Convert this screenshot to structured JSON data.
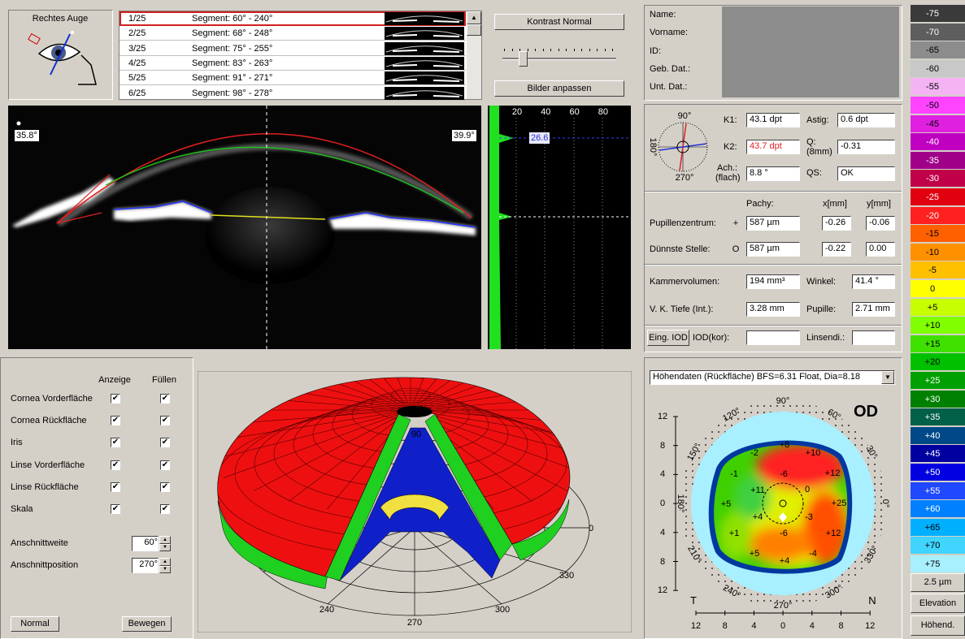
{
  "eye_panel": {
    "title": "Rechtes Auge"
  },
  "segments": [
    {
      "index": "1/25",
      "range": "Segment: 60° - 240°"
    },
    {
      "index": "2/25",
      "range": "Segment: 68° - 248°"
    },
    {
      "index": "3/25",
      "range": "Segment: 75° - 255°"
    },
    {
      "index": "4/25",
      "range": "Segment: 83° - 263°"
    },
    {
      "index": "5/25",
      "range": "Segment: 91° - 271°"
    },
    {
      "index": "6/25",
      "range": "Segment: 98° - 278°"
    }
  ],
  "buttons": {
    "contrast": "Kontrast Normal",
    "adjust": "Bilder anpassen"
  },
  "scheimpflug": {
    "left_angle": "35.8°",
    "right_angle": "39.9°"
  },
  "densitometry": {
    "ticks": [
      "20",
      "40",
      "60",
      "80"
    ],
    "marker": "26.6"
  },
  "patient": {
    "fields": [
      "Name:",
      "Vorname:",
      "ID:",
      "Geb. Dat.:",
      "Unt. Dat.:"
    ]
  },
  "keratometry": {
    "compass": {
      "top": "90°",
      "left": "180°",
      "bottom": "270°"
    },
    "k1": {
      "label": "K1:",
      "value": "43.1 dpt"
    },
    "k2": {
      "label": "K2:",
      "value": "43.7 dpt"
    },
    "axis": {
      "label": "Ach.:",
      "sublabel": "(flach)",
      "value": "8.8 °"
    },
    "astig": {
      "label": "Astig:",
      "value": "0.6 dpt"
    },
    "q": {
      "label": "Q:",
      "sublabel": "(8mm)",
      "value": "-0.31"
    },
    "qs": {
      "label": "QS:",
      "value": "OK"
    }
  },
  "pachymetry": {
    "headers": [
      "Pachy:",
      "x[mm]",
      "y[mm]"
    ],
    "rows": [
      {
        "label": "Pupillenzentrum:",
        "symbol": "+",
        "values": [
          "587 µm",
          "-0.26",
          "-0.06"
        ]
      },
      {
        "label": "Dünnste Stelle:",
        "symbol": "O",
        "values": [
          "587 µm",
          "-0.22",
          "0.00"
        ]
      }
    ]
  },
  "chamber": {
    "rows": [
      [
        {
          "label": "Kammervolumen:",
          "value": "194 mm³"
        },
        {
          "label": "Winkel:",
          "value": "41.4 °"
        }
      ],
      [
        {
          "label": "V. K. Tiefe (Int.):",
          "value": "3.28 mm"
        },
        {
          "label": "Pupille:",
          "value": "2.71 mm"
        }
      ]
    ],
    "iod_button": "Eing. IOD",
    "iod_label": "IOD(kor):",
    "lens_label": "Linsendi.:"
  },
  "display_settings": {
    "headers": [
      "Anzeige",
      "Füllen"
    ],
    "rows": [
      "Cornea Vorderfläche",
      "Cornea Rückfläche",
      "Iris",
      "Linse Vorderfläche",
      "Linse Rückfläche",
      "Skala"
    ],
    "cut_width": {
      "label": "Anschnittweite",
      "value": "60°"
    },
    "cut_position": {
      "label": "Anschnittposition",
      "value": "270°"
    },
    "buttons": [
      "Normal",
      "Bewegen"
    ]
  },
  "view_3d": {
    "labels": [
      "90",
      "0",
      "330",
      "300",
      "270",
      "240"
    ]
  },
  "elevation_map": {
    "dropdown": "Höhendaten (Rückfläche)  BFS=6.31 Float, Dia=8.18",
    "eye": "OD",
    "y_ticks": [
      "12",
      "8",
      "4",
      "0",
      "4",
      "8",
      "12"
    ],
    "x_ticks": [
      "12",
      "8",
      "4",
      "0",
      "4",
      "8",
      "12"
    ],
    "left": "T",
    "right": "N",
    "angles": [
      "90°",
      "120°",
      "150°",
      "180°",
      "210°",
      "240°",
      "270°",
      "300°",
      "330°",
      "0°",
      "30°",
      "60°"
    ],
    "values": [
      "+8",
      "-2",
      "+10",
      "-1",
      "-6",
      "+12",
      "+11",
      "0",
      "+5",
      "+4",
      "-3",
      "+25",
      "+1",
      "-6",
      "+12",
      "+5",
      "+4",
      "-4"
    ]
  },
  "color_scale": {
    "steps": [
      {
        "label": "-75",
        "color": "#3a3a3a"
      },
      {
        "label": "-70",
        "color": "#5e5e5e"
      },
      {
        "label": "-65",
        "color": "#8c8c8c"
      },
      {
        "label": "-60",
        "color": "#c8c8c8"
      },
      {
        "label": "-55",
        "color": "#f4b4f4"
      },
      {
        "label": "-50",
        "color": "#ff44ff"
      },
      {
        "label": "-45",
        "color": "#e020e0"
      },
      {
        "label": "-40",
        "color": "#c000c0"
      },
      {
        "label": "-35",
        "color": "#a00088"
      },
      {
        "label": "-30",
        "color": "#c00048"
      },
      {
        "label": "-25",
        "color": "#e00010"
      },
      {
        "label": "-20",
        "color": "#ff2020"
      },
      {
        "label": "-15",
        "color": "#ff6000"
      },
      {
        "label": "-10",
        "color": "#ff9000"
      },
      {
        "label": "-5",
        "color": "#ffc000"
      },
      {
        "label": "0",
        "color": "#ffff00"
      },
      {
        "label": "+5",
        "color": "#c8ff00"
      },
      {
        "label": "+10",
        "color": "#80ff00"
      },
      {
        "label": "+15",
        "color": "#40e000"
      },
      {
        "label": "+20",
        "color": "#00c000"
      },
      {
        "label": "+25",
        "color": "#00a000"
      },
      {
        "label": "+30",
        "color": "#008000"
      },
      {
        "label": "+35",
        "color": "#006048"
      },
      {
        "label": "+40",
        "color": "#004888"
      },
      {
        "label": "+45",
        "color": "#0000a0"
      },
      {
        "label": "+50",
        "color": "#0000e0"
      },
      {
        "label": "+55",
        "color": "#2048ff"
      },
      {
        "label": "+60",
        "color": "#0080ff"
      },
      {
        "label": "+65",
        "color": "#00b0ff"
      },
      {
        "label": "+70",
        "color": "#40d4ff"
      },
      {
        "label": "+75",
        "color": "#a8f0ff"
      }
    ],
    "step_size": "2.5 µm",
    "mode": "Elevation",
    "type": "Höhend."
  }
}
